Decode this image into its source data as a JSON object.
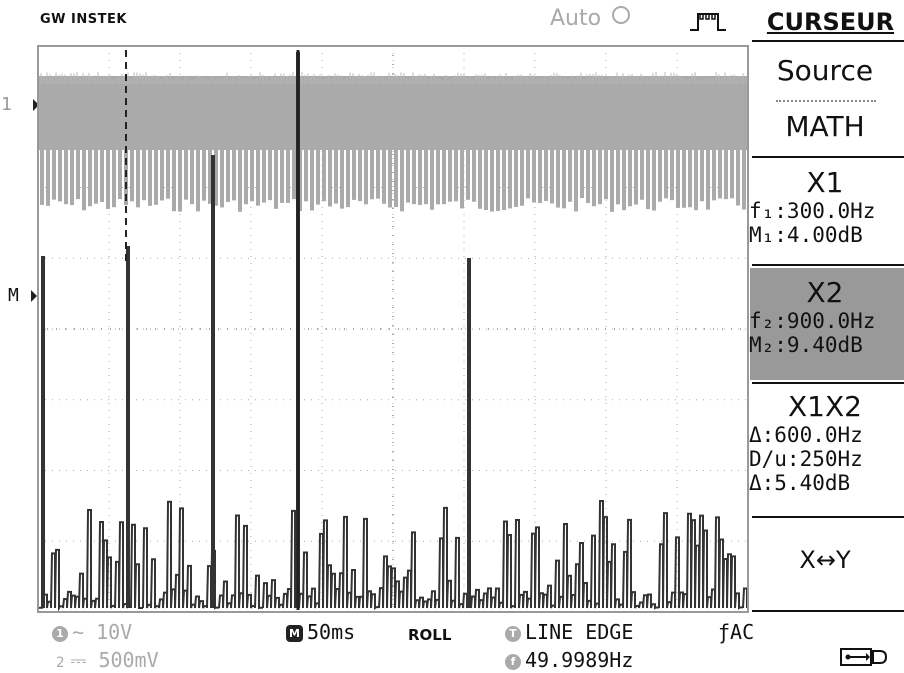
{
  "header": {
    "brand": "GW INSTEK",
    "trigger_mode": "Auto",
    "menu_title": "CURSEUR"
  },
  "markers": {
    "channel1": "1",
    "math": "M"
  },
  "side_menu": {
    "source_label": "Source",
    "source_value": "MATH",
    "x1": {
      "title": "X1",
      "freq": "f₁:300.0Hz",
      "mag": "M₁:4.00dB"
    },
    "x2": {
      "title": "X2",
      "freq": "f₂:900.0Hz",
      "mag": "M₂:9.40dB"
    },
    "x1x2": {
      "title": "X1X2",
      "delta_freq": "Δ:600.0Hz",
      "div": "D/u:250Hz",
      "delta_mag": "Δ:5.40dB"
    },
    "swap": "X↔Y"
  },
  "status": {
    "ch1_badge": "1",
    "ch1_scale": "∼ 10V",
    "ch2_badge": "2",
    "ch2_scale": "⎓ 500mV",
    "time_badge": "M",
    "timebase": "50ms",
    "mode": "ROLL",
    "trig_badge": "T",
    "trigger": "LINE EDGE",
    "coupling": "ƒAC",
    "freq_badge": "f",
    "frequency": "49.9989Hz"
  },
  "colors": {
    "trace": "#aaaaaa",
    "fft": "#333333",
    "grid": "#aaaaaa",
    "highlight": "#999999"
  }
}
